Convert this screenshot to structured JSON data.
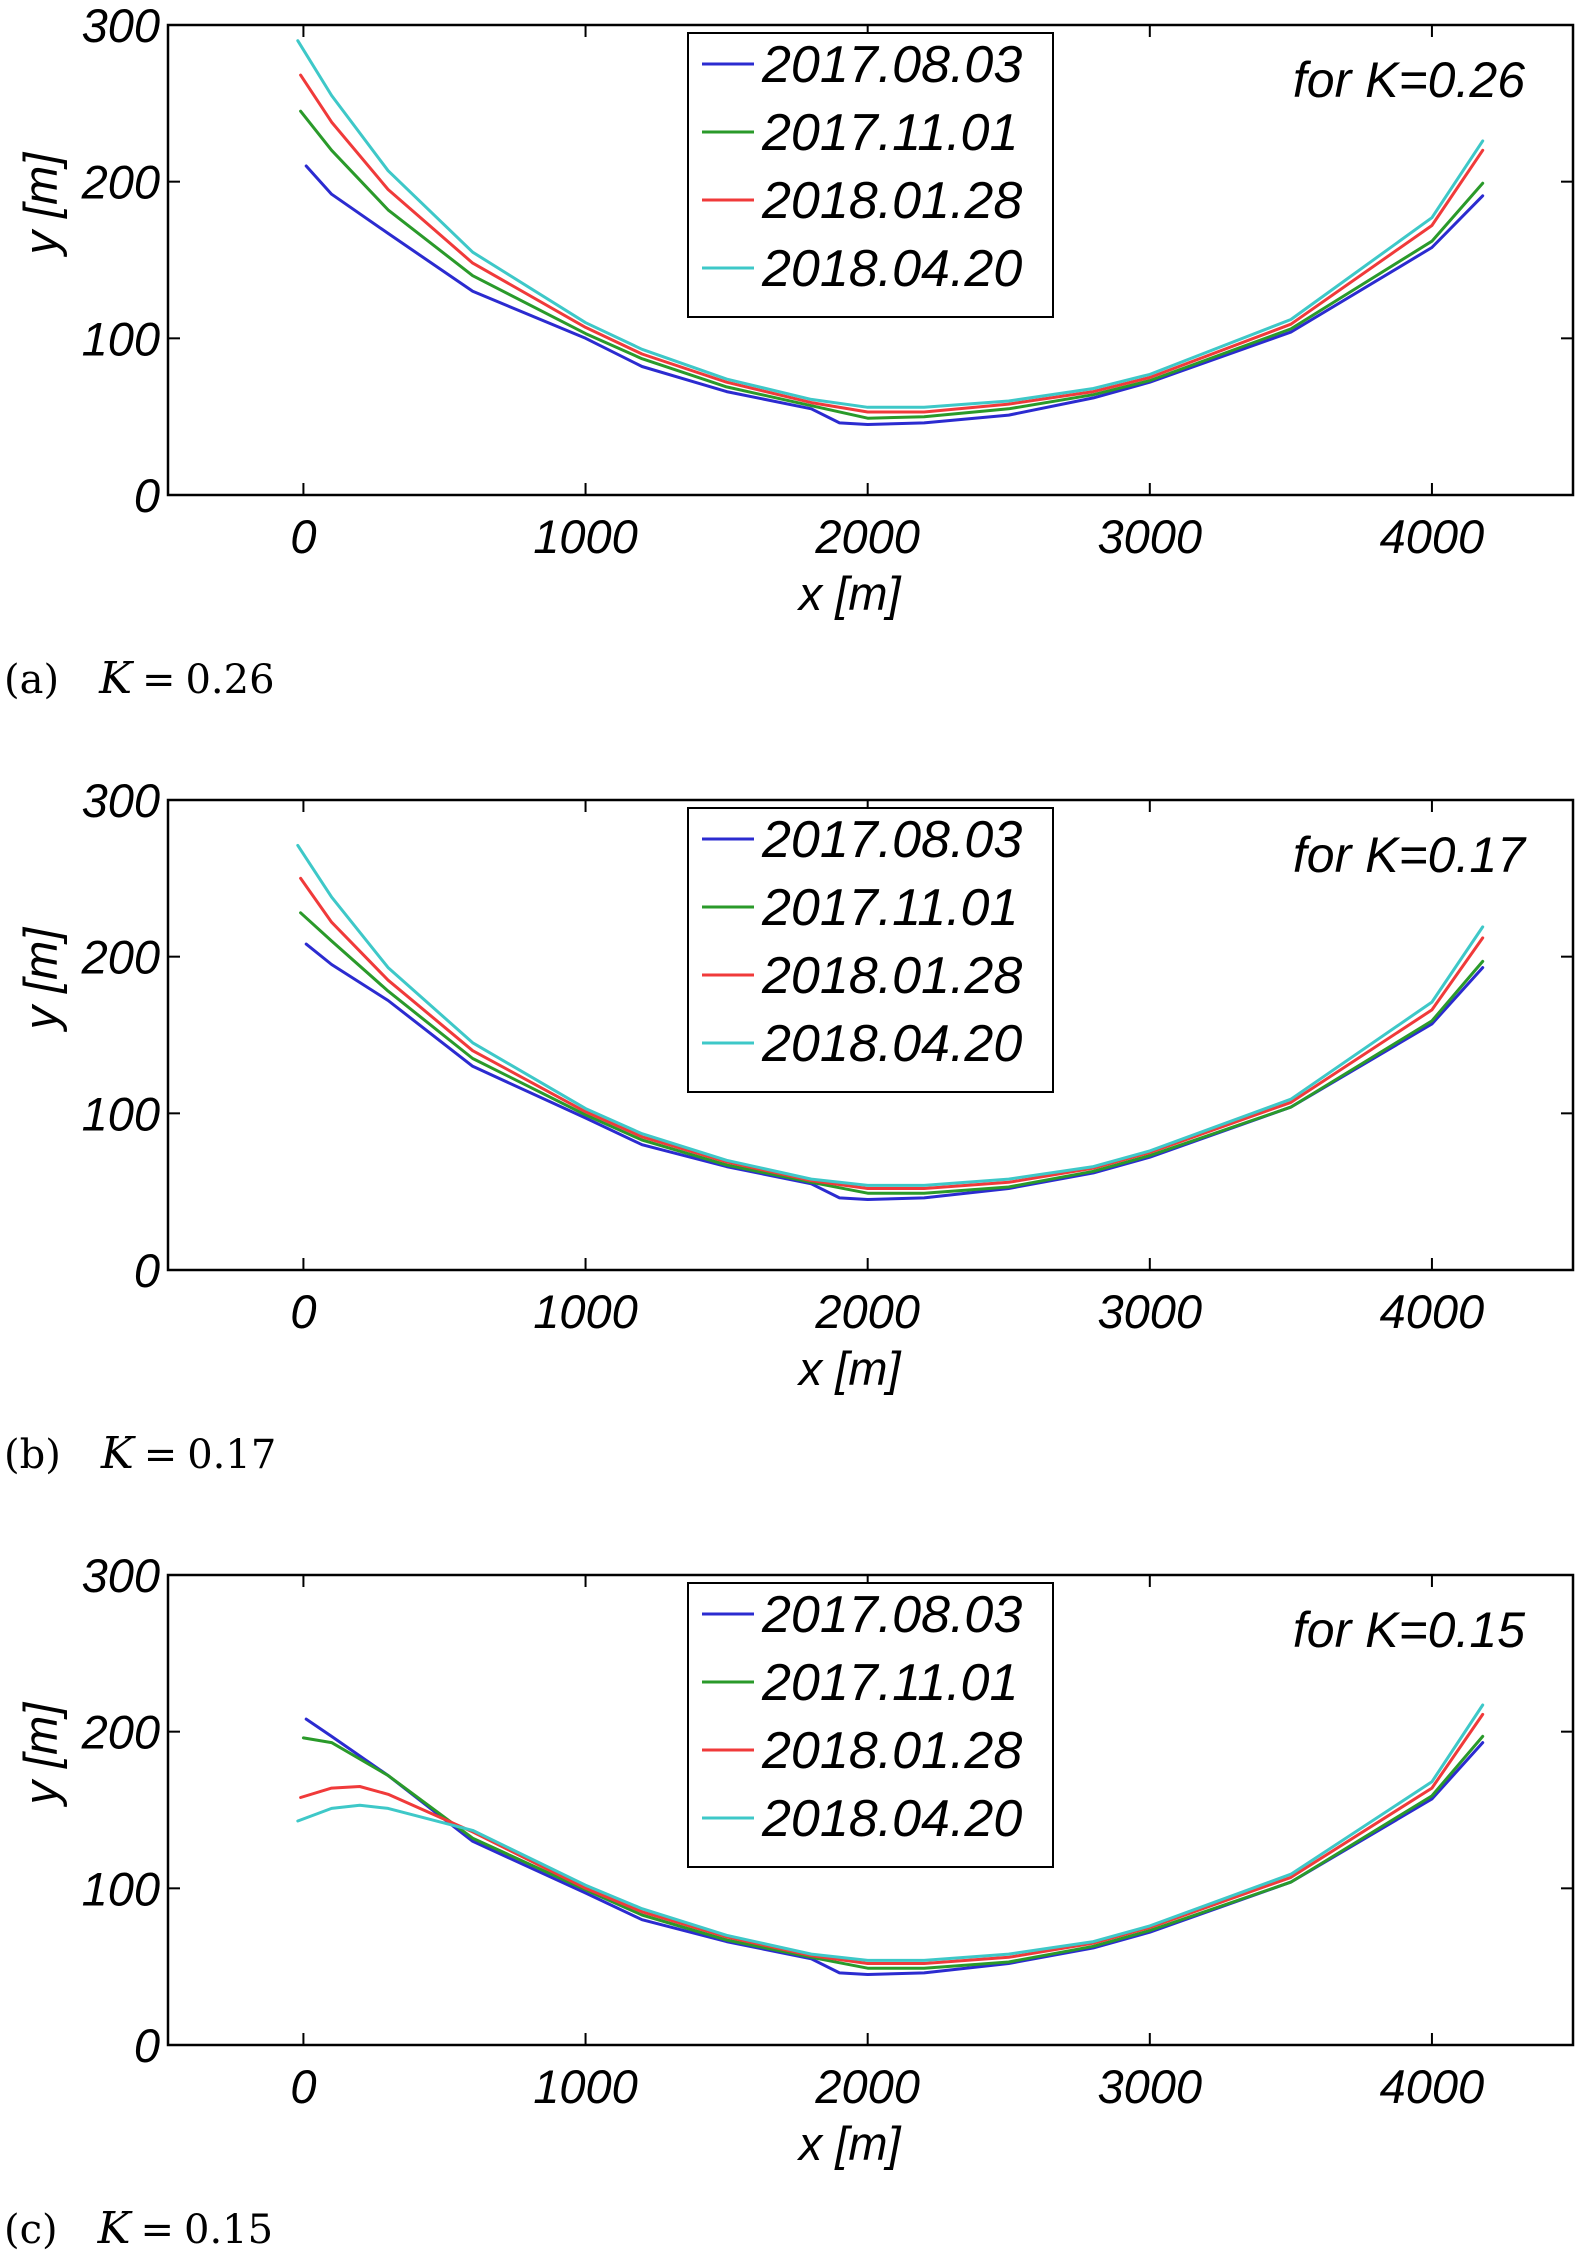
{
  "chart_data": [
    {
      "type": "line",
      "panel": "a",
      "annotation": "for K=0.26",
      "caption": {
        "label": "(a)",
        "symbol": "K",
        "equals": "=",
        "value": "0.26"
      },
      "xlabel": "x [m]",
      "ylabel": "y [m]",
      "xlim": [
        -480,
        4500
      ],
      "ylim": [
        0,
        300
      ],
      "xticks": [
        0,
        1000,
        2000,
        3000,
        4000
      ],
      "yticks": [
        0,
        100,
        200,
        300
      ],
      "legend_position": "top-center",
      "series": [
        {
          "name": "2017.08.03",
          "color": "#2b2bd0",
          "points": [
            [
              10,
              210
            ],
            [
              100,
              192
            ],
            [
              300,
              167
            ],
            [
              600,
              130
            ],
            [
              1000,
              100
            ],
            [
              1200,
              82
            ],
            [
              1500,
              66
            ],
            [
              1800,
              55
            ],
            [
              1900,
              46
            ],
            [
              2000,
              45
            ],
            [
              2200,
              46
            ],
            [
              2500,
              51
            ],
            [
              2800,
              62
            ],
            [
              3000,
              72
            ],
            [
              3500,
              104
            ],
            [
              4000,
              158
            ],
            [
              4180,
              191
            ]
          ]
        },
        {
          "name": "2017.11.01",
          "color": "#2a9a2a",
          "points": [
            [
              -10,
              245
            ],
            [
              100,
              220
            ],
            [
              300,
              182
            ],
            [
              600,
              140
            ],
            [
              1000,
              103
            ],
            [
              1200,
              87
            ],
            [
              1500,
              69
            ],
            [
              1800,
              57
            ],
            [
              2000,
              49
            ],
            [
              2200,
              50
            ],
            [
              2500,
              55
            ],
            [
              2800,
              64
            ],
            [
              3000,
              73
            ],
            [
              3500,
              106
            ],
            [
              4000,
              162
            ],
            [
              4180,
              199
            ]
          ]
        },
        {
          "name": "2018.01.28",
          "color": "#f03a3a",
          "points": [
            [
              -10,
              268
            ],
            [
              100,
              238
            ],
            [
              300,
              195
            ],
            [
              600,
              148
            ],
            [
              1000,
              107
            ],
            [
              1200,
              90
            ],
            [
              1500,
              72
            ],
            [
              1800,
              59
            ],
            [
              2000,
              53
            ],
            [
              2200,
              53
            ],
            [
              2500,
              58
            ],
            [
              2800,
              66
            ],
            [
              3000,
              75
            ],
            [
              3500,
              109
            ],
            [
              4000,
              172
            ],
            [
              4180,
              220
            ]
          ]
        },
        {
          "name": "2018.04.20",
          "color": "#3ec8c8",
          "points": [
            [
              -20,
              290
            ],
            [
              100,
              255
            ],
            [
              300,
              207
            ],
            [
              600,
              155
            ],
            [
              1000,
              110
            ],
            [
              1200,
              93
            ],
            [
              1500,
              74
            ],
            [
              1800,
              61
            ],
            [
              2000,
              56
            ],
            [
              2200,
              56
            ],
            [
              2500,
              60
            ],
            [
              2800,
              68
            ],
            [
              3000,
              77
            ],
            [
              3500,
              112
            ],
            [
              4000,
              177
            ],
            [
              4180,
              226
            ]
          ]
        }
      ]
    },
    {
      "type": "line",
      "panel": "b",
      "annotation": "for K=0.17",
      "caption": {
        "label": "(b)",
        "symbol": "K",
        "equals": "=",
        "value": "0.17"
      },
      "xlabel": "x [m]",
      "ylabel": "y [m]",
      "xlim": [
        -480,
        4500
      ],
      "ylim": [
        0,
        300
      ],
      "xticks": [
        0,
        1000,
        2000,
        3000,
        4000
      ],
      "yticks": [
        0,
        100,
        200,
        300
      ],
      "legend_position": "top-center",
      "series": [
        {
          "name": "2017.08.03",
          "color": "#2b2bd0",
          "points": [
            [
              10,
              208
            ],
            [
              100,
              195
            ],
            [
              300,
              172
            ],
            [
              600,
              130
            ],
            [
              1000,
              97
            ],
            [
              1200,
              80
            ],
            [
              1500,
              66
            ],
            [
              1800,
              55
            ],
            [
              1900,
              46
            ],
            [
              2000,
              45
            ],
            [
              2200,
              46
            ],
            [
              2500,
              52
            ],
            [
              2800,
              62
            ],
            [
              3000,
              72
            ],
            [
              3500,
              104
            ],
            [
              4000,
              157
            ],
            [
              4180,
              193
            ]
          ]
        },
        {
          "name": "2017.11.01",
          "color": "#2a9a2a",
          "points": [
            [
              -10,
              228
            ],
            [
              100,
              210
            ],
            [
              300,
              178
            ],
            [
              600,
              135
            ],
            [
              1000,
              99
            ],
            [
              1200,
              83
            ],
            [
              1500,
              67
            ],
            [
              1800,
              56
            ],
            [
              2000,
              49
            ],
            [
              2200,
              49
            ],
            [
              2500,
              53
            ],
            [
              2800,
              63
            ],
            [
              3000,
              73
            ],
            [
              3500,
              104
            ],
            [
              4000,
              159
            ],
            [
              4180,
              197
            ]
          ]
        },
        {
          "name": "2018.01.28",
          "color": "#f03a3a",
          "points": [
            [
              -10,
              250
            ],
            [
              100,
              222
            ],
            [
              300,
              185
            ],
            [
              600,
              140
            ],
            [
              1000,
              101
            ],
            [
              1200,
              85
            ],
            [
              1500,
              69
            ],
            [
              1800,
              57
            ],
            [
              2000,
              52
            ],
            [
              2200,
              52
            ],
            [
              2500,
              56
            ],
            [
              2800,
              65
            ],
            [
              3000,
              75
            ],
            [
              3500,
              107
            ],
            [
              4000,
              166
            ],
            [
              4180,
              212
            ]
          ]
        },
        {
          "name": "2018.04.20",
          "color": "#3ec8c8",
          "points": [
            [
              -20,
              271
            ],
            [
              100,
              238
            ],
            [
              300,
              193
            ],
            [
              600,
              145
            ],
            [
              1000,
              103
            ],
            [
              1200,
              87
            ],
            [
              1500,
              70
            ],
            [
              1800,
              58
            ],
            [
              2000,
              54
            ],
            [
              2200,
              54
            ],
            [
              2500,
              58
            ],
            [
              2800,
              66
            ],
            [
              3000,
              76
            ],
            [
              3500,
              109
            ],
            [
              4000,
              171
            ],
            [
              4180,
              219
            ]
          ]
        }
      ]
    },
    {
      "type": "line",
      "panel": "c",
      "annotation": "for K=0.15",
      "caption": {
        "label": "(c)",
        "symbol": "K",
        "equals": "=",
        "value": "0.15"
      },
      "xlabel": "x [m]",
      "ylabel": "y [m]",
      "xlim": [
        -480,
        4500
      ],
      "ylim": [
        0,
        300
      ],
      "xticks": [
        0,
        1000,
        2000,
        3000,
        4000
      ],
      "yticks": [
        0,
        100,
        200,
        300
      ],
      "legend_position": "top-center",
      "series": [
        {
          "name": "2017.08.03",
          "color": "#2b2bd0",
          "points": [
            [
              10,
              208
            ],
            [
              100,
              197
            ],
            [
              300,
              172
            ],
            [
              600,
              130
            ],
            [
              1000,
              97
            ],
            [
              1200,
              80
            ],
            [
              1500,
              66
            ],
            [
              1800,
              55
            ],
            [
              1900,
              46
            ],
            [
              2000,
              45
            ],
            [
              2200,
              46
            ],
            [
              2500,
              52
            ],
            [
              2800,
              62
            ],
            [
              3000,
              72
            ],
            [
              3500,
              104
            ],
            [
              4000,
              157
            ],
            [
              4180,
              193
            ]
          ]
        },
        {
          "name": "2017.11.01",
          "color": "#2a9a2a",
          "points": [
            [
              0,
              196
            ],
            [
              100,
              193
            ],
            [
              300,
              172
            ],
            [
              600,
              132
            ],
            [
              1000,
              99
            ],
            [
              1200,
              83
            ],
            [
              1500,
              67
            ],
            [
              1800,
              56
            ],
            [
              2000,
              49
            ],
            [
              2200,
              49
            ],
            [
              2500,
              53
            ],
            [
              2800,
              63
            ],
            [
              3000,
              73
            ],
            [
              3500,
              104
            ],
            [
              4000,
              159
            ],
            [
              4180,
              197
            ]
          ]
        },
        {
          "name": "2018.01.28",
          "color": "#f03a3a",
          "points": [
            [
              -10,
              158
            ],
            [
              100,
              164
            ],
            [
              200,
              165
            ],
            [
              300,
              160
            ],
            [
              600,
              136
            ],
            [
              1000,
              100
            ],
            [
              1200,
              85
            ],
            [
              1500,
              69
            ],
            [
              1800,
              57
            ],
            [
              2000,
              52
            ],
            [
              2200,
              52
            ],
            [
              2500,
              56
            ],
            [
              2800,
              65
            ],
            [
              3000,
              75
            ],
            [
              3500,
              107
            ],
            [
              4000,
              164
            ],
            [
              4180,
              211
            ]
          ]
        },
        {
          "name": "2018.04.20",
          "color": "#3ec8c8",
          "points": [
            [
              -20,
              143
            ],
            [
              100,
              151
            ],
            [
              200,
              153
            ],
            [
              300,
              151
            ],
            [
              600,
              137
            ],
            [
              1000,
              102
            ],
            [
              1200,
              87
            ],
            [
              1500,
              70
            ],
            [
              1800,
              58
            ],
            [
              2000,
              54
            ],
            [
              2200,
              54
            ],
            [
              2500,
              58
            ],
            [
              2800,
              66
            ],
            [
              3000,
              76
            ],
            [
              3500,
              109
            ],
            [
              4000,
              168
            ],
            [
              4180,
              217
            ]
          ]
        }
      ]
    }
  ]
}
